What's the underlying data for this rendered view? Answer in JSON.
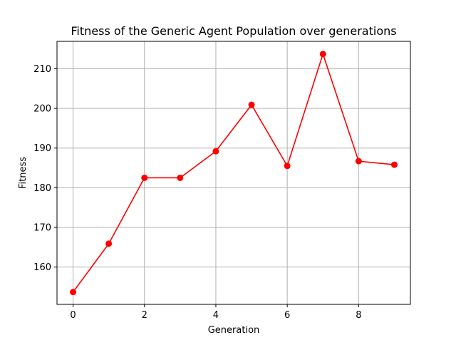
{
  "chart_data": {
    "type": "line",
    "title": "Fitness of the Generic Agent Population over generations",
    "xlabel": "Generation",
    "ylabel": "Fitness",
    "x": [
      0,
      1,
      2,
      3,
      4,
      5,
      6,
      7,
      8,
      9
    ],
    "series": [
      {
        "values": [
          153.7,
          165.9,
          182.5,
          182.5,
          189.2,
          200.9,
          185.5,
          213.7,
          186.7,
          185.8
        ],
        "color": "#ff0000",
        "marker": "circle"
      }
    ],
    "xlim": [
      -0.45,
      9.45
    ],
    "ylim": [
      150.6,
      216.9
    ],
    "xticks": [
      0,
      2,
      4,
      6,
      8
    ],
    "yticks": [
      160,
      170,
      180,
      190,
      200,
      210
    ],
    "grid": true,
    "legend": "none"
  }
}
